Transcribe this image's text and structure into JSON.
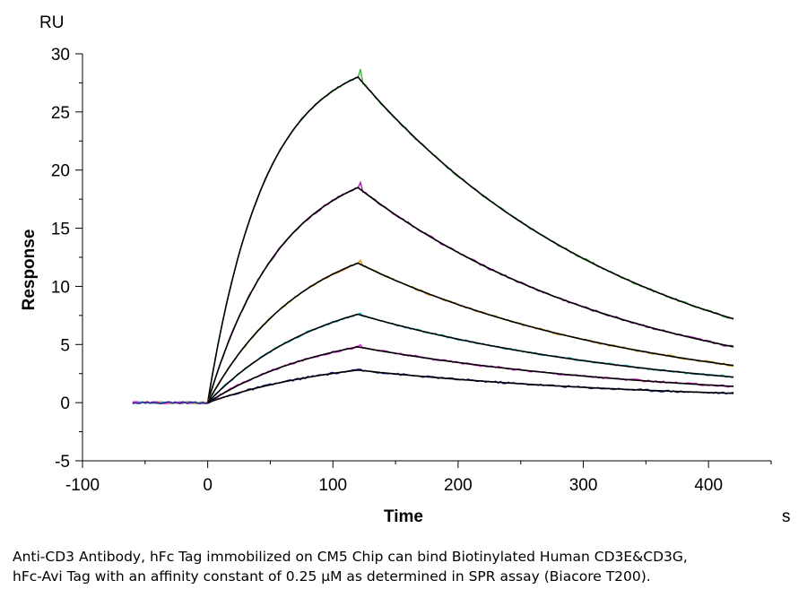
{
  "chart_data": {
    "type": "line",
    "title": "",
    "xlabel": "Time",
    "ylabel": "Response",
    "x_unit": "s",
    "y_unit": "RU",
    "xlim": [
      -100,
      450
    ],
    "ylim": [
      -5,
      30
    ],
    "x_ticks": [
      -100,
      0,
      100,
      200,
      300,
      400
    ],
    "y_ticks": [
      -5,
      0,
      5,
      10,
      15,
      20,
      25,
      30
    ],
    "grid": false,
    "series": [
      {
        "color": "#3cb43c",
        "fit_color": "#000000",
        "data_start": -60,
        "injection_start": 0,
        "injection_end": 120,
        "data_end": 420,
        "peak": 28.0,
        "end_value": 7.2,
        "kon_rate": 0.022
      },
      {
        "color": "#a020a8",
        "fit_color": "#000000",
        "data_start": -60,
        "injection_start": 0,
        "injection_end": 120,
        "data_end": 420,
        "peak": 18.5,
        "end_value": 4.8,
        "kon_rate": 0.017
      },
      {
        "color": "#d4a020",
        "fit_color": "#000000",
        "data_start": -60,
        "injection_start": 0,
        "injection_end": 120,
        "data_end": 420,
        "peak": 12.0,
        "end_value": 3.2,
        "kon_rate": 0.013
      },
      {
        "color": "#20c0c8",
        "fit_color": "#000000",
        "data_start": -60,
        "injection_start": 0,
        "injection_end": 120,
        "data_end": 420,
        "peak": 7.6,
        "end_value": 2.2,
        "kon_rate": 0.011
      },
      {
        "color": "#e020d8",
        "fit_color": "#000000",
        "data_start": -60,
        "injection_start": 0,
        "injection_end": 120,
        "data_end": 420,
        "peak": 4.8,
        "end_value": 1.4,
        "kon_rate": 0.01
      },
      {
        "color": "#1a2890",
        "fit_color": "#000000",
        "data_start": -60,
        "injection_start": 0,
        "injection_end": 120,
        "data_end": 420,
        "peak": 2.8,
        "end_value": 0.8,
        "kon_rate": 0.009
      }
    ]
  },
  "caption": "Anti-CD3 Antibody, hFc Tag immobilized on CM5 Chip can bind Biotinylated Human CD3E&CD3G, hFc-Avi Tag with an affinity constant of 0.25 μM as determined in SPR assay (Biacore T200)."
}
